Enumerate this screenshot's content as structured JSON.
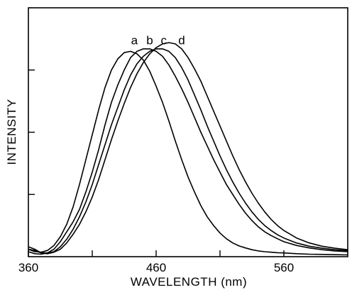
{
  "chart_data": {
    "type": "line",
    "xlabel": "WAVELENGTH (nm)",
    "ylabel": "INTENSITY",
    "xlim": [
      360,
      610
    ],
    "ylim": [
      0,
      1.0
    ],
    "x_ticks": [
      360,
      460,
      560
    ],
    "x_minor_ticks": [
      410,
      510
    ],
    "y_ticks": [
      0.25,
      0.5,
      0.75
    ],
    "grid": false,
    "series": [
      {
        "name": "a",
        "x": [
          360,
          365,
          370,
          375,
          380,
          385,
          390,
          395,
          400,
          405,
          410,
          415,
          420,
          425,
          430,
          435,
          440,
          445,
          450,
          455,
          460,
          465,
          470,
          475,
          480,
          485,
          490,
          495,
          500,
          505,
          510,
          515,
          520,
          525,
          530,
          535,
          540,
          545,
          550,
          555,
          560,
          570,
          580,
          590,
          600,
          610
        ],
        "y": [
          0.03,
          0.02,
          0.018,
          0.025,
          0.045,
          0.08,
          0.13,
          0.2,
          0.29,
          0.39,
          0.49,
          0.59,
          0.68,
          0.75,
          0.795,
          0.82,
          0.825,
          0.815,
          0.79,
          0.745,
          0.685,
          0.62,
          0.545,
          0.465,
          0.39,
          0.32,
          0.26,
          0.205,
          0.16,
          0.125,
          0.095,
          0.072,
          0.055,
          0.043,
          0.035,
          0.028,
          0.023,
          0.02,
          0.018,
          0.016,
          0.015,
          0.012,
          0.01,
          0.009,
          0.008,
          0.007
        ]
      },
      {
        "name": "b",
        "x": [
          360,
          365,
          370,
          375,
          380,
          385,
          390,
          395,
          400,
          405,
          410,
          415,
          420,
          425,
          430,
          435,
          440,
          445,
          450,
          455,
          460,
          465,
          470,
          475,
          480,
          485,
          490,
          495,
          500,
          505,
          510,
          515,
          520,
          525,
          530,
          535,
          540,
          545,
          550,
          555,
          560,
          570,
          580,
          590,
          600,
          610
        ],
        "y": [
          0.02,
          0.012,
          0.01,
          0.015,
          0.03,
          0.06,
          0.1,
          0.14,
          0.19,
          0.26,
          0.34,
          0.43,
          0.53,
          0.62,
          0.69,
          0.75,
          0.8,
          0.825,
          0.835,
          0.835,
          0.825,
          0.805,
          0.77,
          0.725,
          0.675,
          0.62,
          0.56,
          0.5,
          0.445,
          0.39,
          0.34,
          0.29,
          0.25,
          0.21,
          0.175,
          0.145,
          0.12,
          0.1,
          0.085,
          0.072,
          0.06,
          0.045,
          0.035,
          0.028,
          0.023,
          0.02
        ]
      },
      {
        "name": "c",
        "x": [
          360,
          365,
          370,
          375,
          380,
          385,
          390,
          395,
          400,
          405,
          410,
          415,
          420,
          425,
          430,
          435,
          440,
          445,
          450,
          455,
          460,
          465,
          470,
          475,
          480,
          485,
          490,
          495,
          500,
          505,
          510,
          515,
          520,
          525,
          530,
          535,
          540,
          545,
          550,
          555,
          560,
          570,
          580,
          590,
          600,
          610
        ],
        "y": [
          0.04,
          0.03,
          0.015,
          0.015,
          0.02,
          0.04,
          0.07,
          0.11,
          0.16,
          0.22,
          0.29,
          0.37,
          0.45,
          0.53,
          0.6,
          0.67,
          0.73,
          0.775,
          0.805,
          0.825,
          0.835,
          0.835,
          0.825,
          0.8,
          0.76,
          0.71,
          0.65,
          0.59,
          0.525,
          0.465,
          0.405,
          0.35,
          0.3,
          0.255,
          0.215,
          0.18,
          0.15,
          0.125,
          0.105,
          0.088,
          0.075,
          0.055,
          0.042,
          0.034,
          0.028,
          0.024
        ]
      },
      {
        "name": "d",
        "x": [
          360,
          365,
          370,
          375,
          380,
          385,
          390,
          395,
          400,
          405,
          410,
          415,
          420,
          425,
          430,
          435,
          440,
          445,
          450,
          455,
          460,
          465,
          470,
          475,
          480,
          485,
          490,
          495,
          500,
          505,
          510,
          515,
          520,
          525,
          530,
          535,
          540,
          545,
          550,
          555,
          560,
          570,
          580,
          590,
          600,
          610
        ],
        "y": [
          0.03,
          0.025,
          0.015,
          0.012,
          0.018,
          0.03,
          0.055,
          0.09,
          0.13,
          0.18,
          0.24,
          0.31,
          0.39,
          0.47,
          0.545,
          0.615,
          0.68,
          0.735,
          0.78,
          0.815,
          0.84,
          0.855,
          0.86,
          0.855,
          0.835,
          0.8,
          0.755,
          0.705,
          0.645,
          0.585,
          0.525,
          0.465,
          0.405,
          0.35,
          0.3,
          0.255,
          0.215,
          0.18,
          0.15,
          0.125,
          0.105,
          0.075,
          0.055,
          0.042,
          0.034,
          0.028
        ]
      }
    ],
    "annotations": [
      {
        "text": "a",
        "x": 443,
        "y": 0.87
      },
      {
        "text": "b",
        "x": 455,
        "y": 0.87
      },
      {
        "text": "c",
        "x": 466,
        "y": 0.87
      },
      {
        "text": "d",
        "x": 480,
        "y": 0.87
      }
    ]
  }
}
